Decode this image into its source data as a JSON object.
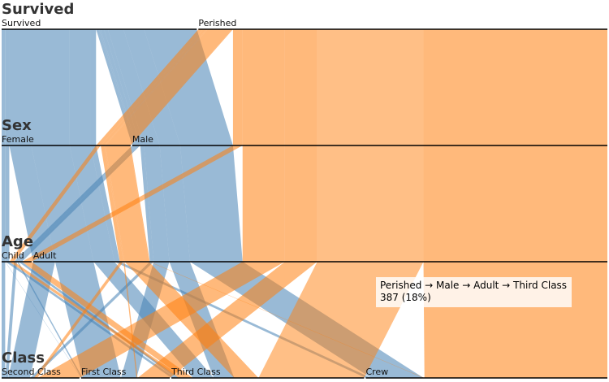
{
  "chart_data": {
    "type": "parallel-sets",
    "dimensions": [
      {
        "name": "Survived",
        "categories": [
          "Survived",
          "Perished"
        ]
      },
      {
        "name": "Sex",
        "categories": [
          "Female",
          "Male"
        ]
      },
      {
        "name": "Age",
        "categories": [
          "Child",
          "Adult"
        ]
      },
      {
        "name": "Class",
        "categories": [
          "Second Class",
          "First Class",
          "Third Class",
          "Crew"
        ]
      }
    ],
    "color_by": "Survived",
    "colors": {
      "Survived": "#4682b4",
      "Perished": "#ff7f0e"
    },
    "flows": [
      {
        "path": [
          "Survived",
          "Female",
          "Child",
          "First Class"
        ],
        "count": 1
      },
      {
        "path": [
          "Survived",
          "Female",
          "Child",
          "Second Class"
        ],
        "count": 13
      },
      {
        "path": [
          "Survived",
          "Female",
          "Child",
          "Third Class"
        ],
        "count": 14
      },
      {
        "path": [
          "Survived",
          "Female",
          "Adult",
          "First Class"
        ],
        "count": 140
      },
      {
        "path": [
          "Survived",
          "Female",
          "Adult",
          "Second Class"
        ],
        "count": 80
      },
      {
        "path": [
          "Survived",
          "Female",
          "Adult",
          "Third Class"
        ],
        "count": 76
      },
      {
        "path": [
          "Survived",
          "Female",
          "Adult",
          "Crew"
        ],
        "count": 20
      },
      {
        "path": [
          "Survived",
          "Male",
          "Child",
          "First Class"
        ],
        "count": 5
      },
      {
        "path": [
          "Survived",
          "Male",
          "Child",
          "Second Class"
        ],
        "count": 11
      },
      {
        "path": [
          "Survived",
          "Male",
          "Child",
          "Third Class"
        ],
        "count": 13
      },
      {
        "path": [
          "Survived",
          "Male",
          "Adult",
          "First Class"
        ],
        "count": 57
      },
      {
        "path": [
          "Survived",
          "Male",
          "Adult",
          "Second Class"
        ],
        "count": 14
      },
      {
        "path": [
          "Survived",
          "Male",
          "Adult",
          "Third Class"
        ],
        "count": 75
      },
      {
        "path": [
          "Survived",
          "Male",
          "Adult",
          "Crew"
        ],
        "count": 192
      },
      {
        "path": [
          "Perished",
          "Female",
          "Child",
          "Third Class"
        ],
        "count": 17
      },
      {
        "path": [
          "Perished",
          "Female",
          "Adult",
          "First Class"
        ],
        "count": 4
      },
      {
        "path": [
          "Perished",
          "Female",
          "Adult",
          "Second Class"
        ],
        "count": 13
      },
      {
        "path": [
          "Perished",
          "Female",
          "Adult",
          "Third Class"
        ],
        "count": 89
      },
      {
        "path": [
          "Perished",
          "Female",
          "Adult",
          "Crew"
        ],
        "count": 3
      },
      {
        "path": [
          "Perished",
          "Male",
          "Child",
          "Third Class"
        ],
        "count": 35
      },
      {
        "path": [
          "Perished",
          "Male",
          "Adult",
          "First Class"
        ],
        "count": 118
      },
      {
        "path": [
          "Perished",
          "Male",
          "Adult",
          "Second Class"
        ],
        "count": 154
      },
      {
        "path": [
          "Perished",
          "Male",
          "Adult",
          "Third Class"
        ],
        "count": 387
      },
      {
        "path": [
          "Perished",
          "Male",
          "Adult",
          "Crew"
        ],
        "count": 670
      }
    ],
    "highlighted_flow": [
      "Perished",
      "Male",
      "Adult",
      "Third Class"
    ],
    "tooltip": {
      "path_text": "Perished → Male → Adult → Third Class",
      "value_text": "387 (18%)"
    }
  }
}
